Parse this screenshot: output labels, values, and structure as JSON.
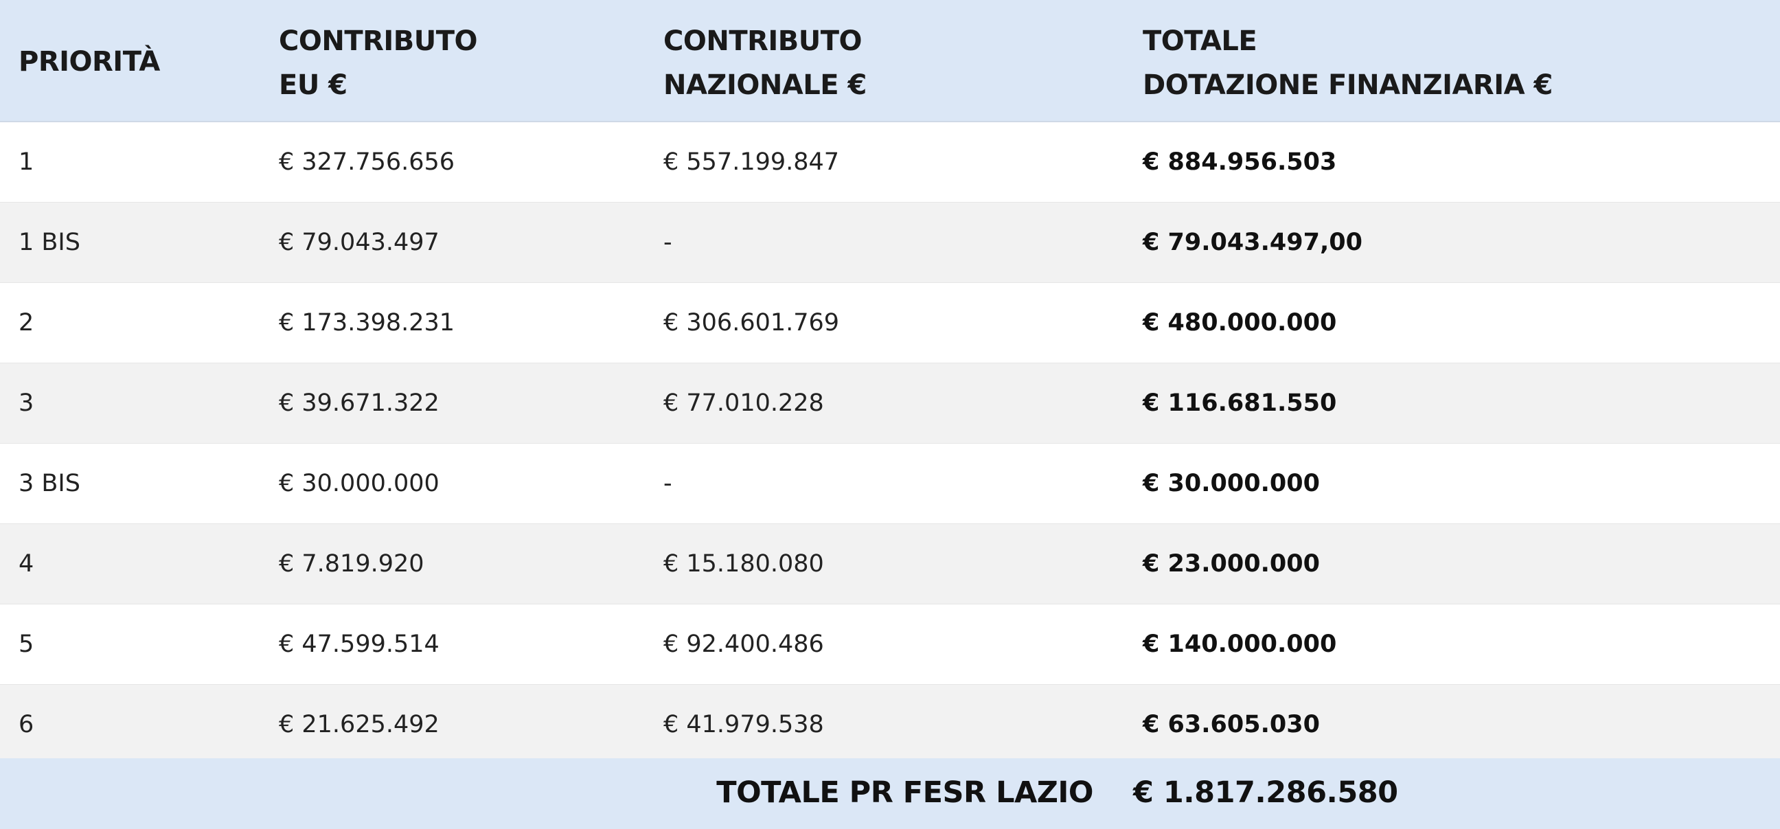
{
  "header": {
    "col1": [
      "PRIORITÀ"
    ],
    "col2": [
      "CONTRIBUTO",
      "EU €"
    ],
    "col3": [
      "CONTRIBUTO",
      "NAZIONALE €"
    ],
    "col4": [
      "TOTALE",
      "DOTAZIONE FINANZIARIA €"
    ]
  },
  "rows": [
    {
      "priority": "1",
      "eu": "€ 327.756.656",
      "nazionale": "€ 557.199.847",
      "totale": "€ 884.956.503"
    },
    {
      "priority": "1 BIS",
      "eu": "€ 79.043.497",
      "nazionale": "-",
      "totale": "€ 79.043.497,00"
    },
    {
      "priority": "2",
      "eu": "€ 173.398.231",
      "nazionale": "€ 306.601.769",
      "totale": "€ 480.000.000"
    },
    {
      "priority": "3",
      "eu": "€ 39.671.322",
      "nazionale": "€ 77.010.228",
      "totale": "€ 116.681.550"
    },
    {
      "priority": "3 BIS",
      "eu": "€ 30.000.000",
      "nazionale": "-",
      "totale": "€ 30.000.000"
    },
    {
      "priority": "4",
      "eu": "€ 7.819.920",
      "nazionale": "€ 15.180.080",
      "totale": "€ 23.000.000"
    },
    {
      "priority": "5",
      "eu": "€ 47.599.514",
      "nazionale": "€ 92.400.486",
      "totale": "€ 140.000.000"
    },
    {
      "priority": "6",
      "eu": "€ 21.625.492",
      "nazionale": "€ 41.979.538",
      "totale": "€ 63.605.030"
    }
  ],
  "footer": {
    "label": "TOTALE PR FESR LAZIO",
    "value": "€ 1.817.286.580"
  },
  "colors": {
    "header_bg": "#dbe7f6",
    "row_alt_bg": "#f2f2f2"
  }
}
